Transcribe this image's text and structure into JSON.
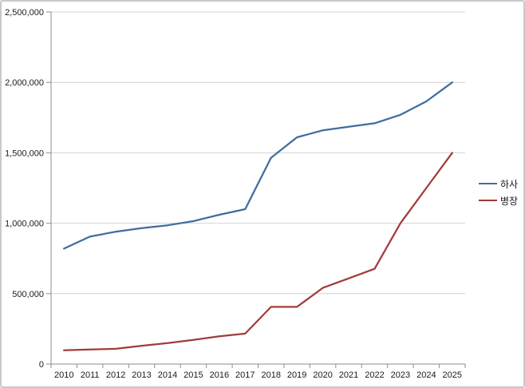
{
  "chart_data": {
    "type": "line",
    "title": "",
    "xlabel": "",
    "ylabel": "",
    "categories": [
      "2010",
      "2011",
      "2012",
      "2013",
      "2014",
      "2015",
      "2016",
      "2017",
      "2018",
      "2019",
      "2020",
      "2021",
      "2022",
      "2023",
      "2024",
      "2025"
    ],
    "series": [
      {
        "name": "하사",
        "color": "#3e6d9e",
        "values": [
          820000,
          905000,
          940000,
          965000,
          985000,
          1015000,
          1060000,
          1100000,
          1465000,
          1610000,
          1660000,
          1685000,
          1710000,
          1770000,
          1865000,
          2000000
        ]
      },
      {
        "name": "병장",
        "color": "#a23b3b",
        "values": [
          97500,
          103800,
          108000,
          129600,
          149000,
          171400,
          197100,
          216000,
          405700,
          405700,
          540900,
          608500,
          676100,
          1000000,
          1250000,
          1500000
        ]
      }
    ],
    "ylim": [
      0,
      2500000
    ],
    "y_ticks": [
      {
        "value": 0,
        "label": "0"
      },
      {
        "value": 500000,
        "label": "500,000"
      },
      {
        "value": 1000000,
        "label": "1,000,000"
      },
      {
        "value": 1500000,
        "label": "1,500,000"
      },
      {
        "value": 2000000,
        "label": "2,000,000"
      },
      {
        "value": 2500000,
        "label": "2,500,000"
      }
    ],
    "grid": true,
    "legend_position": "right"
  },
  "colors": {
    "background": "#ffffff",
    "frame_border": "#c9c9c9",
    "gridline": "#d4d4d4",
    "axis": "#8e8e8e",
    "tick": "#8e8e8e",
    "label_text": "#1a1a1a"
  }
}
